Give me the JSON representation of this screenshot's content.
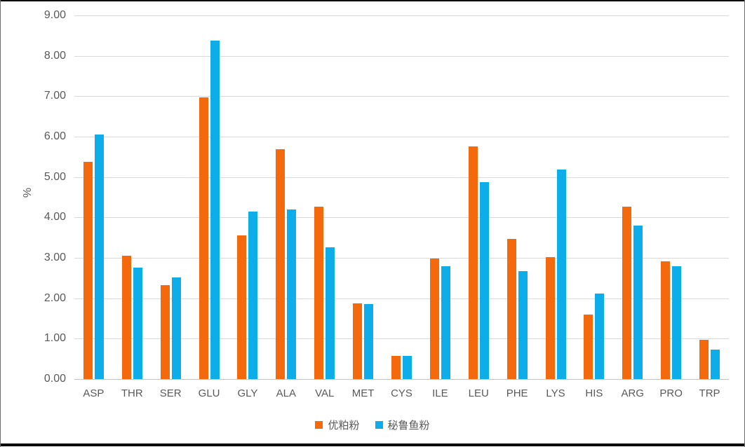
{
  "chart_data": {
    "type": "bar",
    "title": "",
    "xlabel": "",
    "ylabel": "%",
    "categories": [
      "ASP",
      "THR",
      "SER",
      "GLU",
      "GLY",
      "ALA",
      "VAL",
      "MET",
      "CYS",
      "ILE",
      "LEU",
      "PHE",
      "LYS",
      "HIS",
      "ARG",
      "PRO",
      "TRP"
    ],
    "series": [
      {
        "name": "优粕粉",
        "color": "#f4690c",
        "values": [
          5.38,
          3.06,
          2.32,
          6.97,
          3.55,
          5.68,
          4.26,
          1.87,
          0.58,
          2.98,
          5.76,
          3.47,
          3.02,
          1.59,
          4.26,
          2.92,
          0.97
        ]
      },
      {
        "name": "秘鲁鱼粉",
        "color": "#0cade8",
        "values": [
          6.05,
          2.76,
          2.52,
          8.37,
          4.14,
          4.19,
          3.26,
          1.85,
          0.57,
          2.8,
          4.87,
          2.67,
          5.18,
          2.11,
          3.79,
          2.8,
          0.73
        ]
      }
    ],
    "ylim": [
      0,
      9
    ],
    "ytick_step": 1,
    "ytick_labels": [
      "0.00",
      "1.00",
      "2.00",
      "3.00",
      "4.00",
      "5.00",
      "6.00",
      "7.00",
      "8.00",
      "9.00"
    ],
    "grid": true,
    "legend_position": "bottom"
  },
  "colors": {
    "gridline": "#d9d9d9",
    "axis_line": "#c3c3c3",
    "tick_text": "#595959",
    "frame": "#000000"
  }
}
